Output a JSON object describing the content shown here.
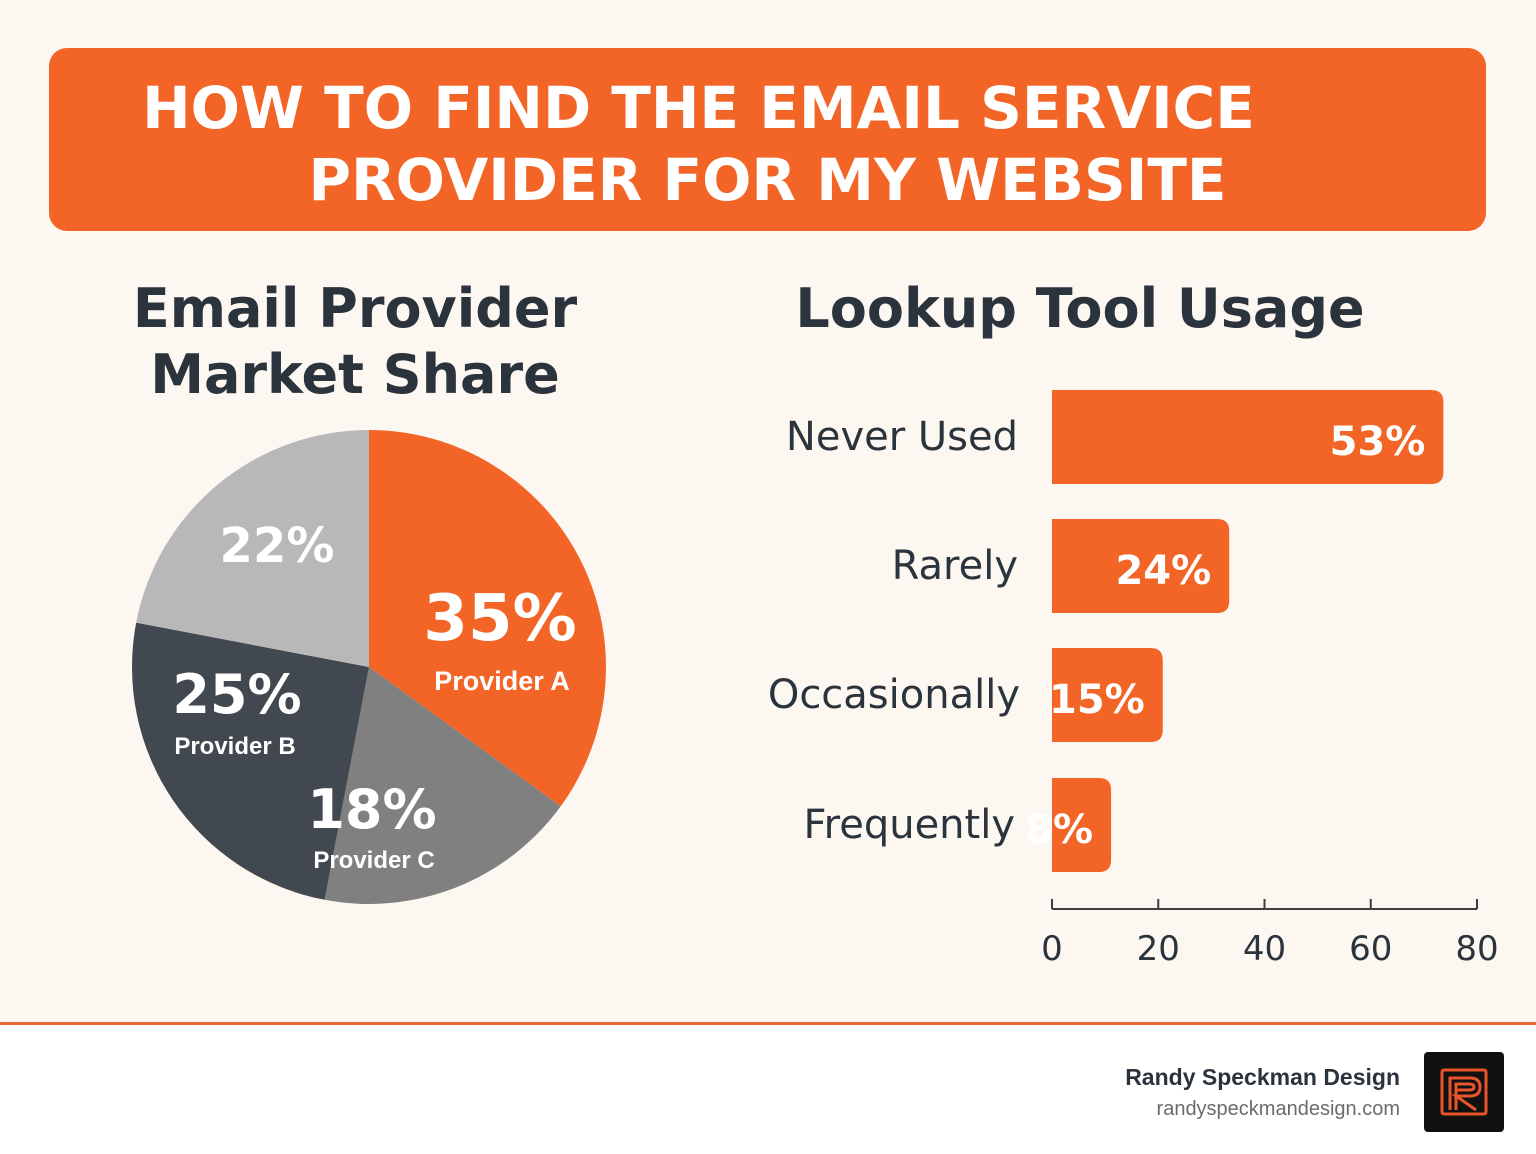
{
  "banner": {
    "line1": "HOW TO FIND THE EMAIL SERVICE",
    "line2": "PROVIDER FOR MY WEBSITE"
  },
  "colors": {
    "accent": "#f26526",
    "text": "#2b333d",
    "pie_a": "#f26526",
    "pie_b": "#424850",
    "pie_c": "#808080",
    "pie_other": "#b8b8b8"
  },
  "chart_data": [
    {
      "type": "pie",
      "title": "Email Provider Market Share",
      "title_lines": [
        "Email Provider",
        "Market Share"
      ],
      "slices": [
        {
          "label": "Provider A",
          "value": 35,
          "value_label": "35%"
        },
        {
          "label": "Provider C",
          "value": 18,
          "value_label": "18%"
        },
        {
          "label": "Provider B",
          "value": 25,
          "value_label": "25%"
        },
        {
          "label": "",
          "value": 22,
          "value_label": "22%"
        }
      ]
    },
    {
      "type": "bar",
      "orientation": "horizontal",
      "title": "Lookup Tool Usage",
      "categories": [
        "Never Used",
        "Rarely",
        "Occasionally",
        "Frequently"
      ],
      "values": [
        53,
        24,
        15,
        8
      ],
      "value_labels": [
        "53%",
        "24%",
        "15%",
        "8%"
      ],
      "xlim": [
        0,
        80
      ],
      "xticks": [
        0,
        20,
        40,
        60,
        80
      ],
      "grid": false
    }
  ],
  "footer": {
    "brand_name": "Randy Speckman Design",
    "brand_url": "randyspeckmandesign.com",
    "logo_icon": "r-monogram-icon"
  }
}
